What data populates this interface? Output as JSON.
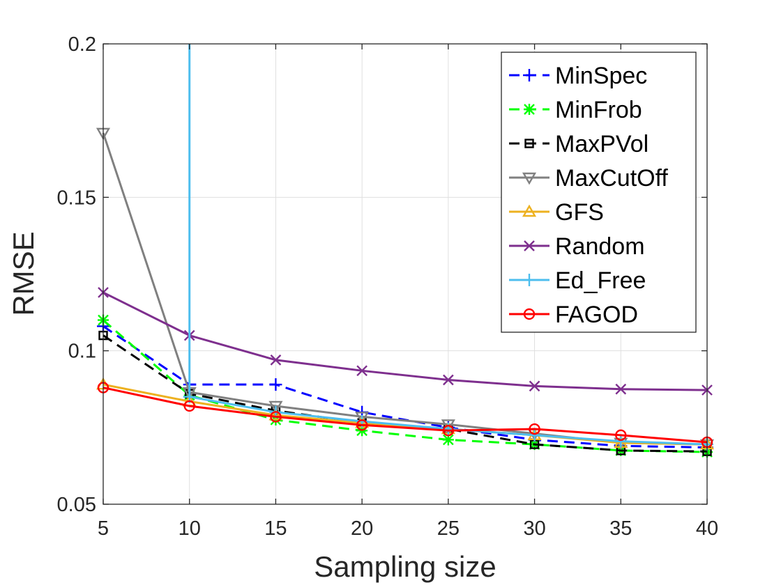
{
  "chart_data": {
    "type": "line",
    "title": "",
    "xlabel": "Sampling size",
    "ylabel": "RMSE",
    "xlim": [
      5,
      40
    ],
    "ylim": [
      0.05,
      0.2
    ],
    "x": [
      5,
      10,
      15,
      20,
      25,
      30,
      35,
      40
    ],
    "xticks": [
      "5",
      "10",
      "15",
      "20",
      "25",
      "30",
      "35",
      "40"
    ],
    "yticks": [
      "0.05",
      "0.1",
      "0.15",
      "0.2"
    ],
    "grid": true,
    "legend_position": "top-right",
    "series": [
      {
        "name": "MinSpec",
        "color": "#0000ff",
        "style": "dashed",
        "marker": "plus",
        "values": [
          0.108,
          0.089,
          0.089,
          0.08,
          0.075,
          0.071,
          0.069,
          0.0685
        ]
      },
      {
        "name": "MinFrob",
        "color": "#00ff00",
        "style": "dashed",
        "marker": "asterisk",
        "values": [
          0.11,
          0.0855,
          0.0775,
          0.074,
          0.071,
          0.0695,
          0.0675,
          0.067
        ]
      },
      {
        "name": "MaxPVol",
        "color": "#000000",
        "style": "dashed",
        "marker": "square",
        "values": [
          0.105,
          0.086,
          0.0805,
          0.0765,
          0.0745,
          0.0695,
          0.0675,
          0.0672
        ]
      },
      {
        "name": "MaxCutOff",
        "color": "#808080",
        "style": "solid",
        "marker": "triangle-down",
        "values": [
          0.171,
          0.0865,
          0.082,
          0.0785,
          0.076,
          0.073,
          0.07,
          0.0695
        ]
      },
      {
        "name": "GFS",
        "color": "#edb120",
        "style": "solid",
        "marker": "triangle-up",
        "values": [
          0.089,
          0.0835,
          0.079,
          0.0765,
          0.0745,
          0.0725,
          0.07,
          0.0695
        ]
      },
      {
        "name": "Random",
        "color": "#7e2f8e",
        "style": "solid",
        "marker": "x",
        "values": [
          0.119,
          0.105,
          0.097,
          0.0935,
          0.0905,
          0.0885,
          0.0875,
          0.0872
        ]
      },
      {
        "name": "Ed_Free",
        "color": "#4dbeee",
        "style": "solid",
        "marker": "plus",
        "values": [
          null,
          0.085,
          0.08,
          0.077,
          0.0745,
          0.0725,
          0.0705,
          0.0695
        ],
        "spike": {
          "x": 10,
          "to": 0.2
        }
      },
      {
        "name": "FAGOD",
        "color": "#ff0000",
        "style": "solid",
        "marker": "circle",
        "values": [
          0.088,
          0.082,
          0.0785,
          0.0758,
          0.074,
          0.0745,
          0.0725,
          0.0702
        ]
      }
    ]
  }
}
